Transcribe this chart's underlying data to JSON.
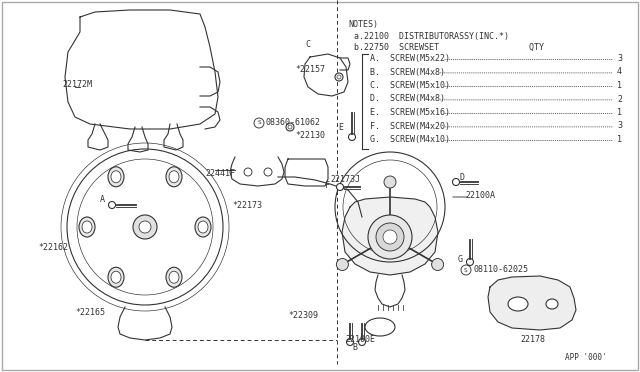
{
  "background_color": "#ffffff",
  "line_color": "#333333",
  "text_color": "#333333",
  "notes_title": "NOTES)",
  "note_a": "a.22100  DISTRIBUTORASSY(INC.*)",
  "note_b": "b.22750  SCREWSET                  QTY",
  "screw_list": [
    [
      "A.",
      "SCREW(M5x22)",
      "3"
    ],
    [
      "B.",
      "SCREW(M4x8)",
      "4"
    ],
    [
      "C.",
      "SCREW(M5x10)",
      "1"
    ],
    [
      "D.",
      "SCREW(M4x8)",
      "2"
    ],
    [
      "E.",
      "SCREW(M5x16)",
      "1"
    ],
    [
      "F.",
      "SCREW(M4x20)",
      "3"
    ],
    [
      "G.",
      "SCREW(M4x10)",
      "1"
    ]
  ],
  "app_code": "APP '000'",
  "border_color": "#aaaaaa"
}
